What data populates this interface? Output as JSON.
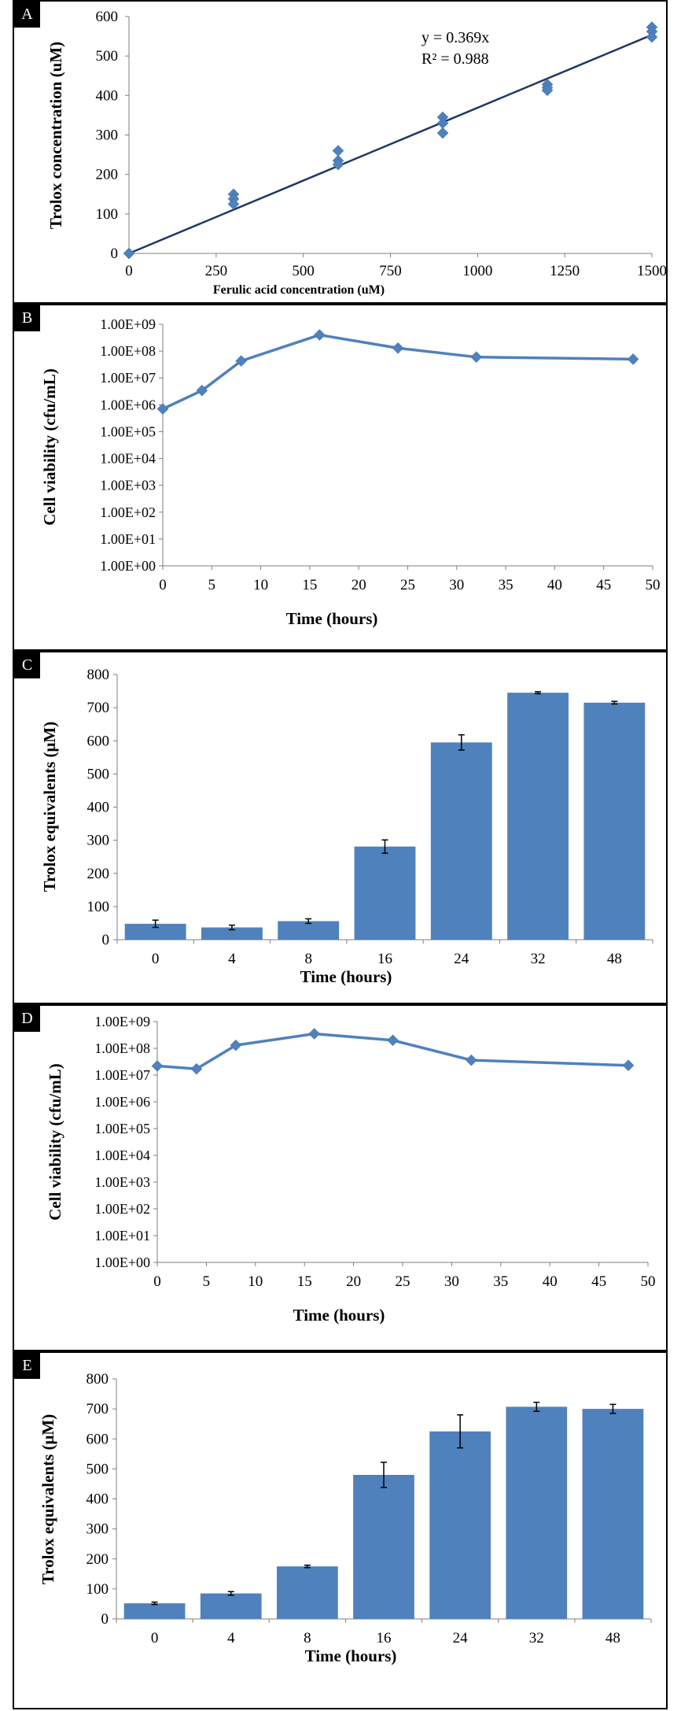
{
  "colors": {
    "series": "#4F81BD",
    "trendline": "#1F3864",
    "marker": "#4F81BD",
    "axis": "#7f7f7f",
    "errorbar": "#000000"
  },
  "panels": {
    "A": {
      "label": "A"
    },
    "B": {
      "label": "B"
    },
    "C": {
      "label": "C"
    },
    "D": {
      "label": "D"
    },
    "E": {
      "label": "E"
    }
  },
  "chart_data": [
    {
      "id": "A",
      "type": "scatter",
      "xlabel": "Ferulic acid concentration (uM)",
      "ylabel": "Trolox concentration (uM)",
      "xlim": [
        0,
        1500
      ],
      "ylim": [
        0,
        600
      ],
      "xticks": [
        0,
        250,
        500,
        750,
        1000,
        1250,
        1500
      ],
      "yticks": [
        0,
        100,
        200,
        300,
        400,
        500,
        600
      ],
      "points": [
        [
          0,
          0
        ],
        [
          300,
          150
        ],
        [
          300,
          138
        ],
        [
          300,
          125
        ],
        [
          600,
          260
        ],
        [
          600,
          235
        ],
        [
          600,
          225
        ],
        [
          900,
          345
        ],
        [
          900,
          330
        ],
        [
          900,
          305
        ],
        [
          1200,
          428
        ],
        [
          1200,
          420
        ],
        [
          1200,
          413
        ],
        [
          1500,
          573
        ],
        [
          1500,
          562
        ],
        [
          1500,
          548
        ]
      ],
      "trendline": {
        "slope": 0.369,
        "equation": "y = 0.369x",
        "r2": "R² = 0.988"
      }
    },
    {
      "id": "B",
      "type": "line",
      "scale": "log",
      "xlabel": "Time (hours)",
      "ylabel": "Cell viability (cfu/mL)",
      "xlim": [
        0,
        50
      ],
      "xticks": [
        0,
        5,
        10,
        15,
        20,
        25,
        30,
        35,
        40,
        45,
        50
      ],
      "ylim_exp": [
        0,
        9
      ],
      "ytick_labels": [
        "1.00E+00",
        "1.00E+01",
        "1.00E+02",
        "1.00E+03",
        "1.00E+04",
        "1.00E+05",
        "1.00E+06",
        "1.00E+07",
        "1.00E+08",
        "1.00E+09"
      ],
      "x": [
        0,
        4,
        8,
        16,
        24,
        32,
        48
      ],
      "y": [
        700000.0,
        3400000.0,
        43000000.0,
        400000000.0,
        130000000.0,
        60000000.0,
        50000000.0
      ]
    },
    {
      "id": "C",
      "type": "bar",
      "xlabel": "Time (hours)",
      "ylabel": "Trolox equivalents (μM)",
      "ylim": [
        0,
        800
      ],
      "yticks": [
        0,
        100,
        200,
        300,
        400,
        500,
        600,
        700,
        800
      ],
      "categories": [
        "0",
        "4",
        "8",
        "16",
        "24",
        "32",
        "48"
      ],
      "values": [
        48,
        37,
        56,
        281,
        595,
        745,
        715
      ],
      "errors": [
        11,
        7,
        7,
        20,
        23,
        3,
        4
      ]
    },
    {
      "id": "D",
      "type": "line",
      "scale": "log",
      "xlabel": "Time (hours)",
      "ylabel": "Cell viability (cfu/mL)",
      "xlim": [
        0,
        50
      ],
      "xticks": [
        0,
        5,
        10,
        15,
        20,
        25,
        30,
        35,
        40,
        45,
        50
      ],
      "ylim_exp": [
        0,
        9
      ],
      "ytick_labels": [
        "1.00E+00",
        "1.00E+01",
        "1.00E+02",
        "1.00E+03",
        "1.00E+04",
        "1.00E+05",
        "1.00E+06",
        "1.00E+07",
        "1.00E+08",
        "1.00E+09"
      ],
      "x": [
        0,
        4,
        8,
        16,
        24,
        32,
        48
      ],
      "y": [
        22000000.0,
        17000000.0,
        130000000.0,
        350000000.0,
        200000000.0,
        36000000.0,
        23000000.0
      ]
    },
    {
      "id": "E",
      "type": "bar",
      "xlabel": "Time (hours)",
      "ylabel": "Trolox equivalents (μM)",
      "ylim": [
        0,
        800
      ],
      "yticks": [
        0,
        100,
        200,
        300,
        400,
        500,
        600,
        700,
        800
      ],
      "categories": [
        "0",
        "4",
        "8",
        "16",
        "24",
        "32",
        "48"
      ],
      "values": [
        52,
        85,
        175,
        480,
        625,
        707,
        700
      ],
      "errors": [
        4,
        6,
        4,
        42,
        55,
        15,
        15
      ]
    }
  ]
}
